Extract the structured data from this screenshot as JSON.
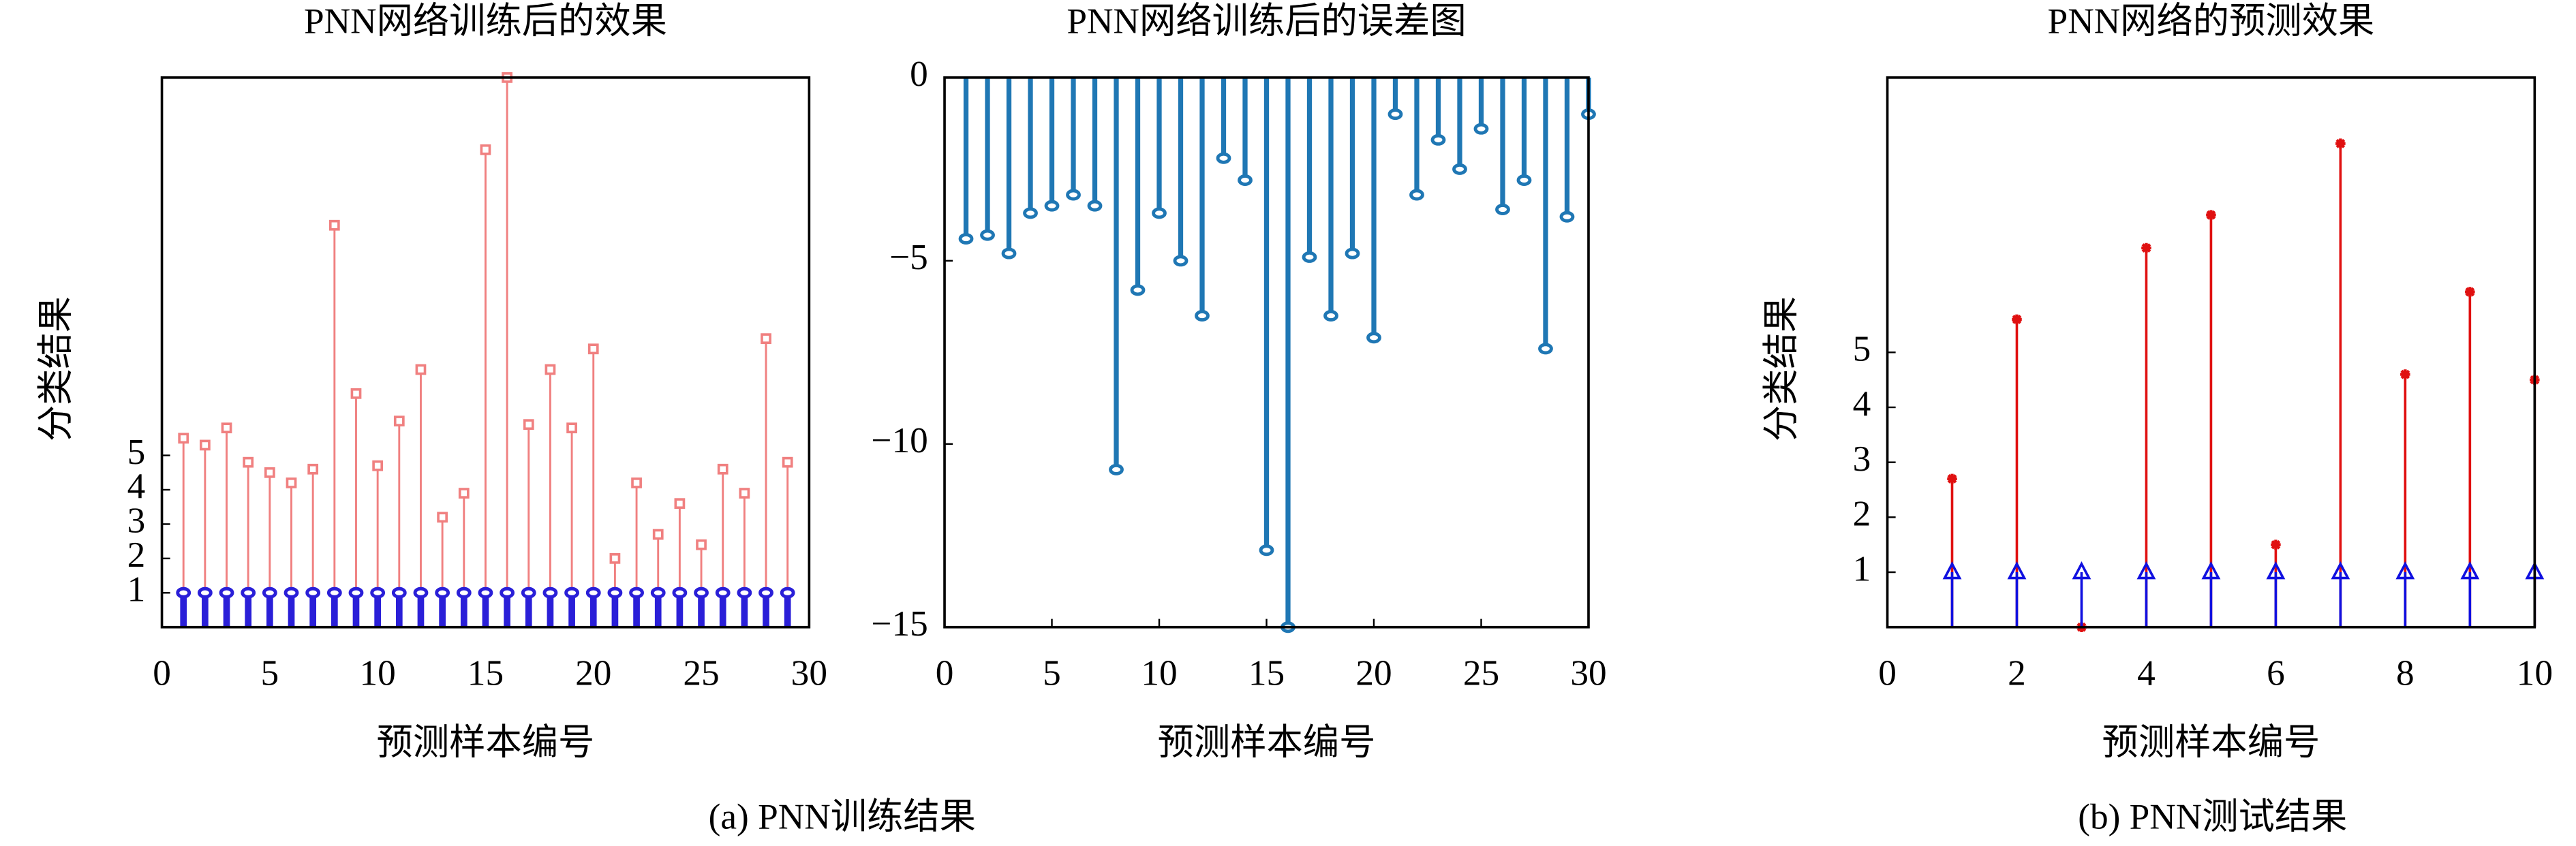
{
  "chart_data": [
    {
      "type": "stem",
      "title": "PNN网络训练后的效果",
      "xlabel": "预测样本编号",
      "ylabel": "分类结果",
      "x": [
        1,
        2,
        3,
        4,
        5,
        6,
        7,
        8,
        9,
        10,
        11,
        12,
        13,
        14,
        15,
        16,
        17,
        18,
        19,
        20,
        21,
        22,
        23,
        24,
        25,
        26,
        27,
        28,
        29
      ],
      "series": [
        {
          "color": "#f08080",
          "marker": "square",
          "width": 1.2,
          "values": [
            5.5,
            5.3,
            5.8,
            4.8,
            4.5,
            4.2,
            4.6,
            11.7,
            6.8,
            4.7,
            6.0,
            7.5,
            3.2,
            3.9,
            13.9,
            16,
            5.9,
            7.5,
            5.8,
            8.1,
            2.0,
            4.2,
            2.7,
            3.6,
            2.4,
            4.6,
            3.9,
            8.4,
            4.8
          ]
        },
        {
          "color": "#2a1fd8",
          "marker": "circle",
          "width": 4,
          "values": [
            1,
            1,
            1,
            1,
            1,
            1,
            1,
            1,
            1,
            1,
            1,
            1,
            1,
            1,
            1,
            1,
            1,
            1,
            1,
            1,
            1,
            1,
            1,
            1,
            1,
            1,
            1,
            1,
            1
          ]
        }
      ],
      "xlim": [
        0,
        30
      ],
      "xticks": [
        0,
        5,
        10,
        15,
        20,
        25,
        30
      ],
      "ylim": [
        0,
        16
      ],
      "yticks": [
        1,
        2,
        3,
        4,
        5
      ]
    },
    {
      "type": "stem",
      "title": "PNN网络训练后的误差图",
      "xlabel": "预测样本编号",
      "x": [
        1,
        2,
        3,
        4,
        5,
        6,
        7,
        8,
        9,
        10,
        11,
        12,
        13,
        14,
        15,
        16,
        17,
        18,
        19,
        20,
        21,
        22,
        23,
        24,
        25,
        26,
        27,
        28,
        29,
        30
      ],
      "series": [
        {
          "color": "#1f77b4",
          "marker": "circle",
          "width": 3,
          "values": [
            -4.4,
            -4.3,
            -4.8,
            -3.7,
            -3.5,
            -3.2,
            -3.5,
            -10.7,
            -5.8,
            -3.7,
            -5.0,
            -6.5,
            -2.2,
            -2.8,
            -12.9,
            -15,
            -4.9,
            -6.5,
            -4.8,
            -7.1,
            -1.0,
            -3.2,
            -1.7,
            -2.5,
            -1.4,
            -3.6,
            -2.8,
            -7.4,
            -3.8,
            -1.0
          ]
        }
      ],
      "xlim": [
        0,
        30
      ],
      "xticks": [
        0,
        5,
        10,
        15,
        20,
        25,
        30
      ],
      "ylim": [
        -15,
        0
      ],
      "yticks": [
        -15,
        -10,
        -5,
        0
      ]
    },
    {
      "type": "stem",
      "title": "PNN网络的预测效果",
      "xlabel": "预测样本编号",
      "ylabel": "分类结果",
      "x": [
        1,
        2,
        3,
        4,
        5,
        6,
        7,
        8,
        9,
        10
      ],
      "series": [
        {
          "color": "#e01010",
          "marker": "star",
          "width": 1.5,
          "values": [
            2.7,
            5.6,
            0,
            6.9,
            7.5,
            1.5,
            8.8,
            4.6,
            6.1,
            4.5
          ]
        },
        {
          "color": "#1010e0",
          "marker": "triangle",
          "width": 1.5,
          "values": [
            1,
            1,
            1,
            1,
            1,
            1,
            1,
            1,
            1,
            1
          ]
        }
      ],
      "xlim": [
        0,
        10
      ],
      "xticks": [
        0,
        2,
        4,
        6,
        8,
        10
      ],
      "ylim": [
        0,
        10
      ],
      "yticks": [
        1,
        2,
        3,
        4,
        5
      ]
    }
  ],
  "captions": [
    "(a) PNN训练结果",
    "(b) PNN测试结果"
  ]
}
